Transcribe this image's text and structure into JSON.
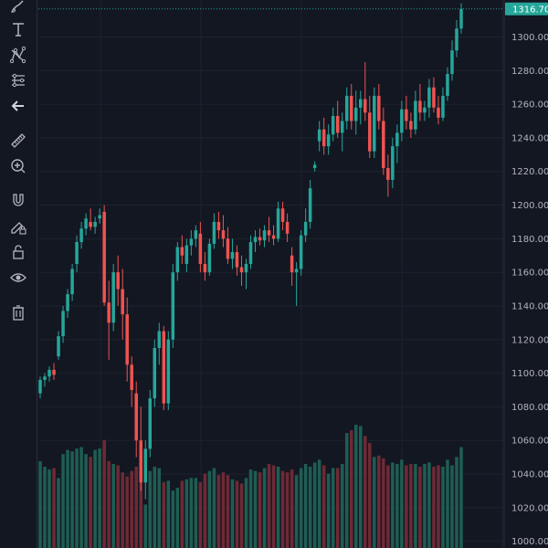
{
  "toolbar": {
    "tools": [
      {
        "name": "brush-icon"
      },
      {
        "name": "text-icon"
      },
      {
        "name": "pattern-icon"
      },
      {
        "name": "prediction-icon"
      },
      {
        "name": "back-arrow-icon"
      },
      {
        "name": "ruler-icon"
      },
      {
        "name": "zoom-in-icon"
      },
      {
        "name": "magnet-icon"
      },
      {
        "name": "pencil-lock-icon"
      },
      {
        "name": "unlock-icon"
      },
      {
        "name": "eye-icon"
      },
      {
        "name": "trash-icon"
      }
    ]
  },
  "colors": {
    "background": "#131722",
    "up": "#26a69a",
    "down": "#ef5350",
    "up_volume": "#1e5e52",
    "down_volume": "#6e2a35",
    "grid": "#1e222d",
    "last_price_line": "#26a69a",
    "last_price_tag": "#26a69a"
  },
  "chart_data": {
    "type": "candlestick",
    "y_axis_ticks": [
      1000.0,
      1020.0,
      1040.0,
      1060.0,
      1080.0,
      1100.0,
      1120.0,
      1140.0,
      1160.0,
      1180.0,
      1200.0,
      1220.0,
      1240.0,
      1260.0,
      1280.0,
      1300.0
    ],
    "ylim": [
      996,
      1322
    ],
    "last_price": "1316.70",
    "grid": true,
    "candles": [
      [
        1088,
        1098,
        1085,
        1096
      ],
      [
        1096,
        1100,
        1092,
        1098
      ],
      [
        1098,
        1104,
        1095,
        1102
      ],
      [
        1102,
        1106,
        1096,
        1099
      ],
      [
        1110,
        1125,
        1108,
        1122
      ],
      [
        1122,
        1140,
        1118,
        1137
      ],
      [
        1137,
        1150,
        1133,
        1147
      ],
      [
        1147,
        1165,
        1143,
        1162
      ],
      [
        1165,
        1182,
        1160,
        1178
      ],
      [
        1178,
        1190,
        1174,
        1186
      ],
      [
        1186,
        1195,
        1182,
        1192
      ],
      [
        1190,
        1198,
        1185,
        1187
      ],
      [
        1187,
        1193,
        1183,
        1190
      ],
      [
        1192,
        1198,
        1189,
        1194
      ],
      [
        1196,
        1200,
        1140,
        1142
      ],
      [
        1142,
        1155,
        1108,
        1130
      ],
      [
        1130,
        1165,
        1125,
        1160
      ],
      [
        1160,
        1170,
        1140,
        1150
      ],
      [
        1150,
        1162,
        1120,
        1135
      ],
      [
        1135,
        1145,
        1095,
        1105
      ],
      [
        1105,
        1110,
        1080,
        1090
      ],
      [
        1088,
        1095,
        1050,
        1060
      ],
      [
        1060,
        1080,
        1030,
        1035
      ],
      [
        1035,
        1060,
        1025,
        1055
      ],
      [
        1055,
        1090,
        1050,
        1085
      ],
      [
        1085,
        1120,
        1080,
        1115
      ],
      [
        1115,
        1130,
        1105,
        1125
      ],
      [
        1125,
        1128,
        1078,
        1082
      ],
      [
        1082,
        1125,
        1078,
        1120
      ],
      [
        1120,
        1165,
        1115,
        1160
      ],
      [
        1160,
        1178,
        1155,
        1175
      ],
      [
        1175,
        1182,
        1165,
        1170
      ],
      [
        1165,
        1180,
        1160,
        1176
      ],
      [
        1176,
        1185,
        1170,
        1180
      ],
      [
        1180,
        1188,
        1175,
        1185
      ],
      [
        1183,
        1190,
        1160,
        1165
      ],
      [
        1165,
        1172,
        1155,
        1160
      ],
      [
        1160,
        1180,
        1158,
        1177
      ],
      [
        1177,
        1195,
        1174,
        1190
      ],
      [
        1190,
        1196,
        1180,
        1185
      ],
      [
        1185,
        1194,
        1175,
        1180
      ],
      [
        1180,
        1187,
        1165,
        1168
      ],
      [
        1168,
        1180,
        1162,
        1172
      ],
      [
        1172,
        1176,
        1158,
        1163
      ],
      [
        1163,
        1170,
        1152,
        1160
      ],
      [
        1160,
        1168,
        1150,
        1165
      ],
      [
        1165,
        1182,
        1162,
        1178
      ],
      [
        1178,
        1185,
        1172,
        1181
      ],
      [
        1181,
        1186,
        1176,
        1179
      ],
      [
        1179,
        1188,
        1175,
        1185
      ],
      [
        1185,
        1193,
        1178,
        1182
      ],
      [
        1182,
        1188,
        1176,
        1180
      ],
      [
        1180,
        1202,
        1178,
        1198
      ],
      [
        1198,
        1202,
        1185,
        1190
      ],
      [
        1190,
        1195,
        1178,
        1183
      ],
      [
        1170,
        1175,
        1152,
        1160
      ],
      [
        1160,
        1166,
        1140,
        1162
      ],
      [
        1162,
        1185,
        1158,
        1182
      ],
      [
        1182,
        1198,
        1178,
        1190
      ],
      [
        1190,
        1215,
        1186,
        1210
      ],
      [
        1222,
        1226,
        1220,
        1224
      ],
      [
        1238,
        1250,
        1232,
        1245
      ],
      [
        1245,
        1252,
        1230,
        1235
      ],
      [
        1235,
        1248,
        1230,
        1242
      ],
      [
        1242,
        1258,
        1238,
        1253
      ],
      [
        1253,
        1262,
        1240,
        1243
      ],
      [
        1243,
        1255,
        1232,
        1250
      ],
      [
        1250,
        1270,
        1245,
        1265
      ],
      [
        1265,
        1272,
        1245,
        1250
      ],
      [
        1250,
        1268,
        1242,
        1258
      ],
      [
        1258,
        1268,
        1248,
        1263
      ],
      [
        1263,
        1285,
        1250,
        1255
      ],
      [
        1255,
        1265,
        1228,
        1232
      ],
      [
        1232,
        1270,
        1228,
        1265
      ],
      [
        1265,
        1272,
        1245,
        1250
      ],
      [
        1250,
        1258,
        1218,
        1222
      ],
      [
        1222,
        1230,
        1205,
        1215
      ],
      [
        1215,
        1240,
        1210,
        1235
      ],
      [
        1235,
        1248,
        1225,
        1243
      ],
      [
        1243,
        1262,
        1238,
        1257
      ],
      [
        1257,
        1265,
        1245,
        1250
      ],
      [
        1250,
        1255,
        1240,
        1245
      ],
      [
        1245,
        1268,
        1242,
        1262
      ],
      [
        1262,
        1272,
        1250,
        1255
      ],
      [
        1255,
        1262,
        1250,
        1258
      ],
      [
        1258,
        1275,
        1252,
        1270
      ],
      [
        1270,
        1276,
        1255,
        1258
      ],
      [
        1258,
        1265,
        1248,
        1252
      ],
      [
        1252,
        1270,
        1250,
        1265
      ],
      [
        1265,
        1282,
        1262,
        1278
      ],
      [
        1278,
        1298,
        1274,
        1292
      ],
      [
        1292,
        1310,
        1288,
        1305
      ],
      [
        1305,
        1320,
        1302,
        1316.7
      ]
    ],
    "volume": [
      62,
      58,
      56,
      57,
      50,
      67,
      70,
      69,
      71,
      72,
      67,
      65,
      70,
      71,
      77,
      62,
      60,
      59,
      54,
      51,
      55,
      58,
      52,
      31,
      55,
      58,
      57,
      47,
      48,
      41,
      43,
      48,
      49,
      50,
      50,
      47,
      53,
      55,
      57,
      52,
      54,
      52,
      49,
      48,
      46,
      50,
      56,
      55,
      54,
      57,
      60,
      59,
      58,
      55,
      54,
      56,
      52,
      57,
      60,
      58,
      61,
      63,
      59,
      53,
      57,
      57,
      60,
      82,
      84,
      88,
      87,
      80,
      75,
      65,
      66,
      64,
      59,
      61,
      60,
      63,
      59,
      60,
      60,
      58,
      60,
      61,
      58,
      59,
      58,
      63,
      59,
      65,
      72
    ]
  }
}
